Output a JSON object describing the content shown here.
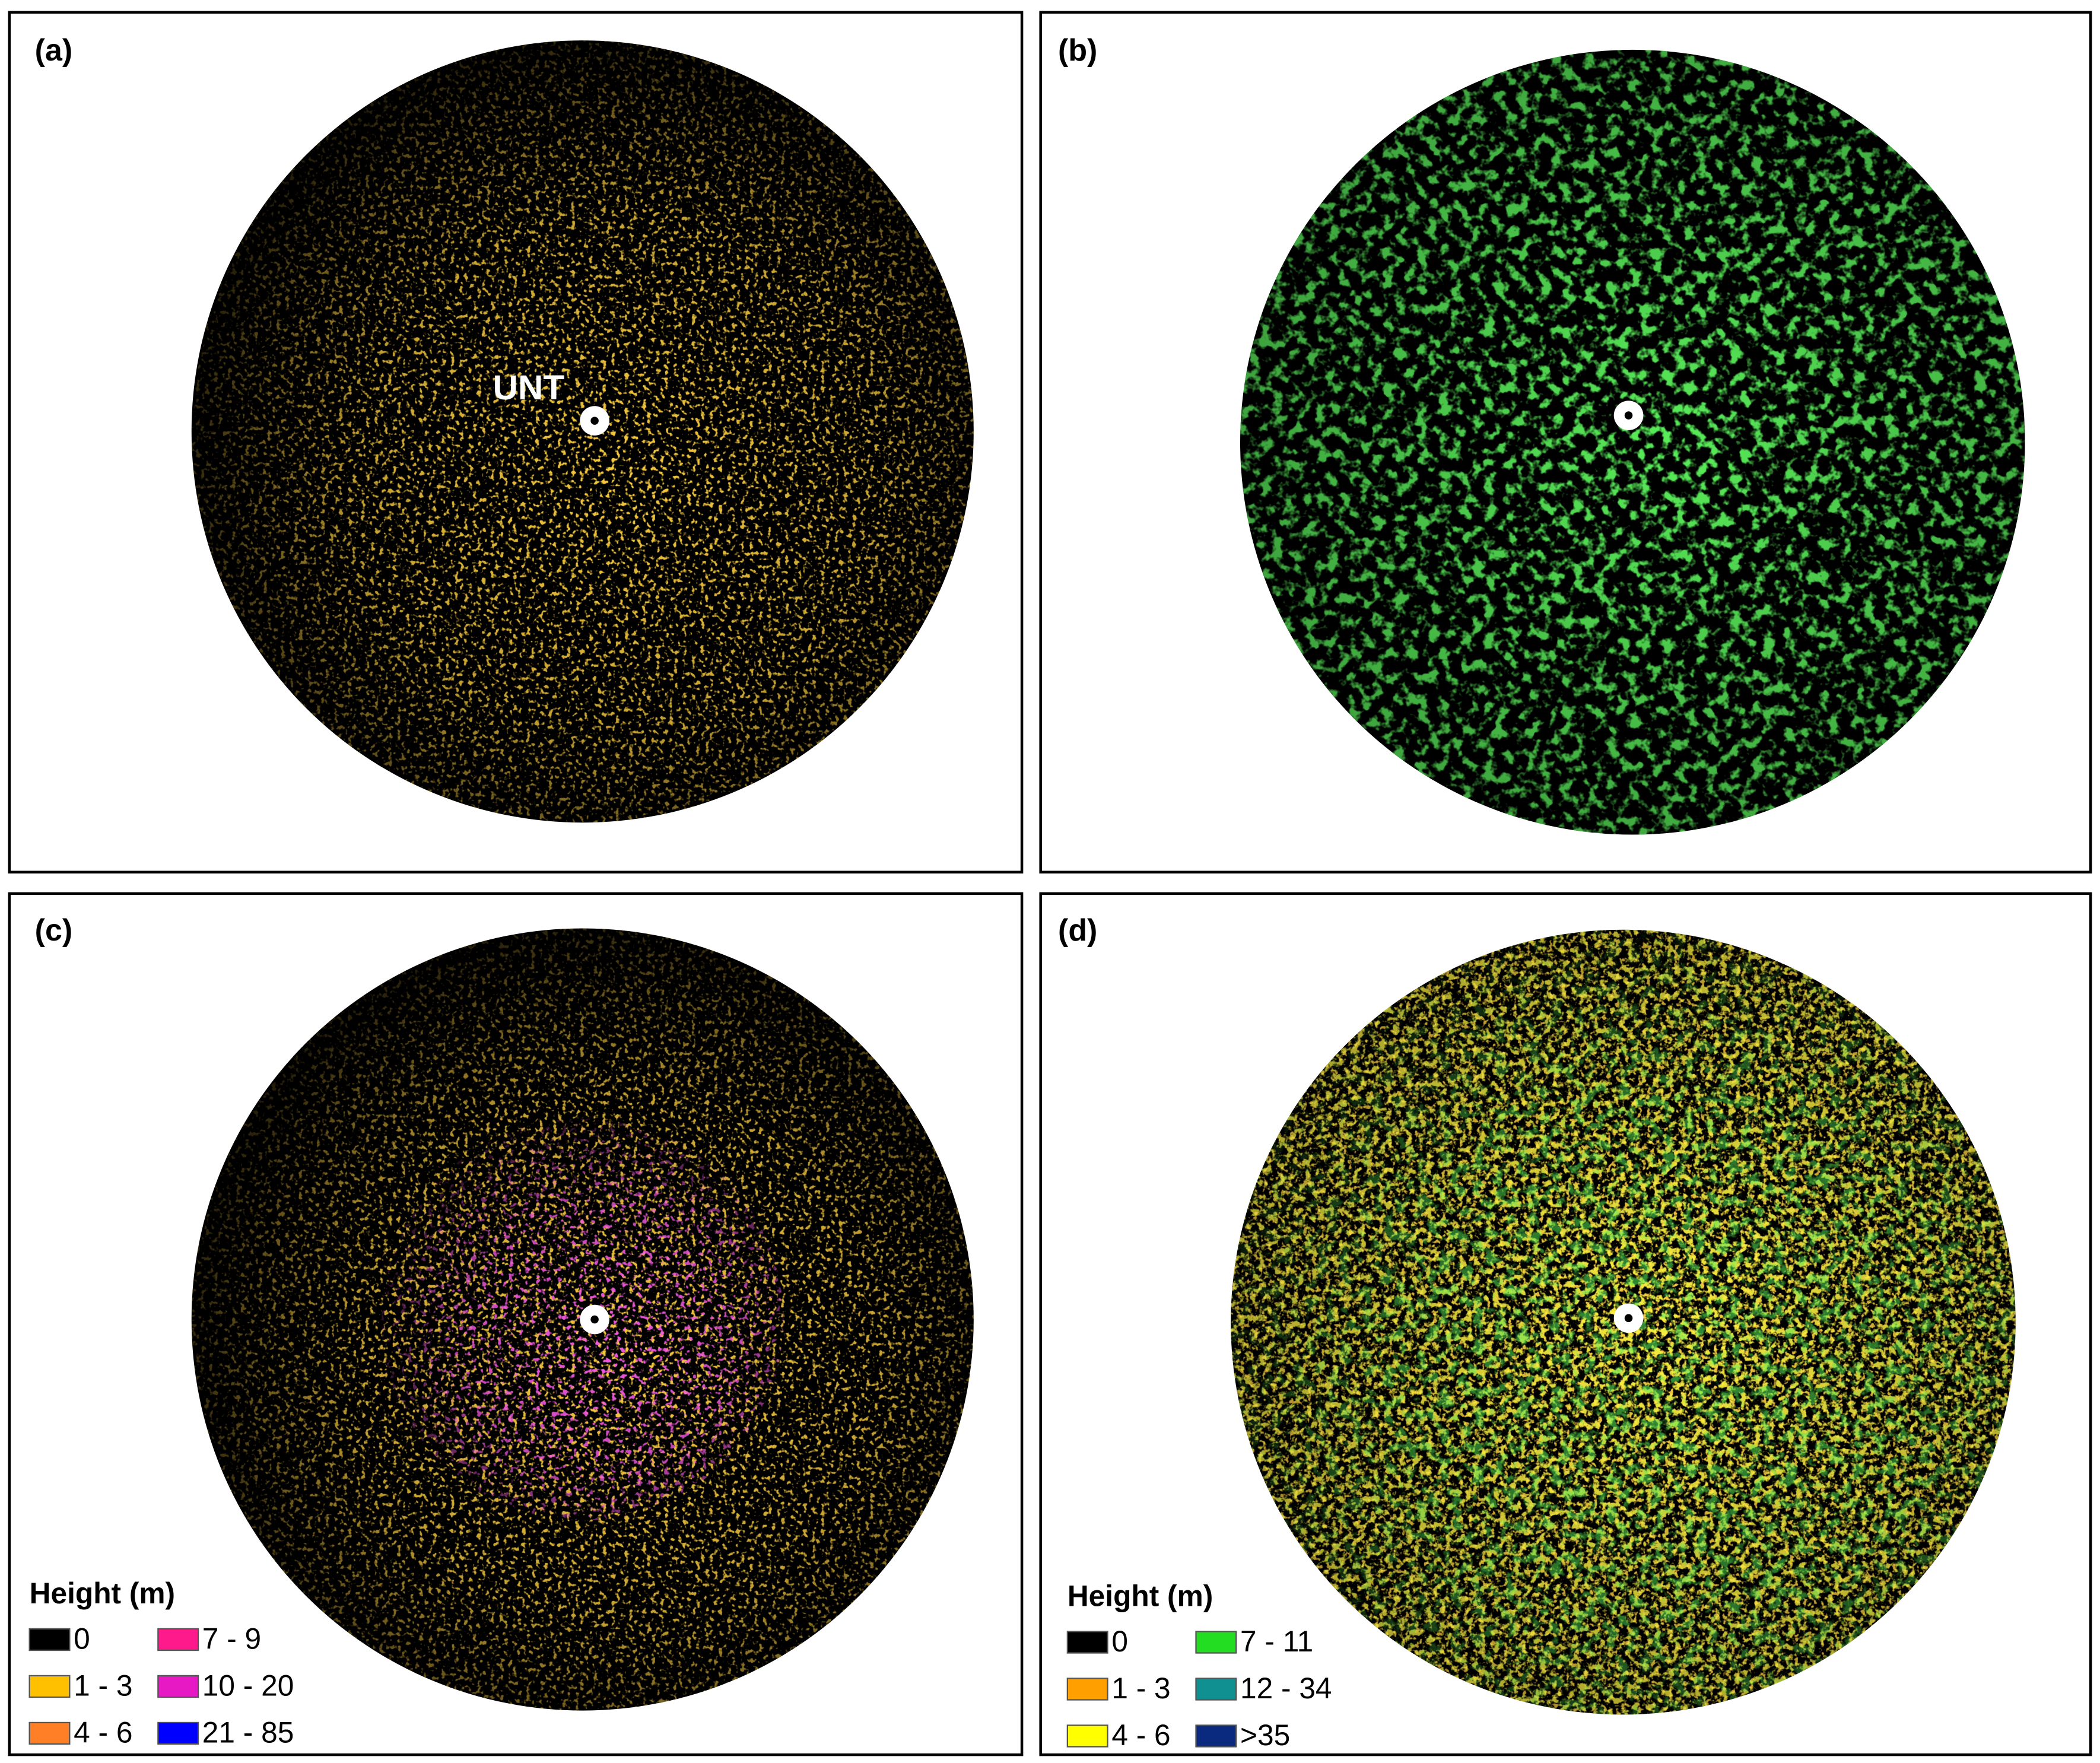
{
  "panels": [
    {
      "label": "(a)"
    },
    {
      "label": "(b)"
    },
    {
      "label": "(c)"
    },
    {
      "label": "(d)"
    }
  ],
  "annotation": "UNT",
  "legends": [
    {
      "title": "Height (m)",
      "items": [
        {
          "label": "0",
          "color": "#000000"
        },
        {
          "label": "1 - 3",
          "color": "#ffc000"
        },
        {
          "label": "4 - 6",
          "color": "#ff7f27"
        },
        {
          "label": "7 - 9",
          "color": "#ff1a8c"
        },
        {
          "label": "10 - 20",
          "color": "#e619c4"
        },
        {
          "label": "21 - 85",
          "color": "#0000ff"
        }
      ]
    },
    {
      "title": "Height (m)",
      "items": [
        {
          "label": "0",
          "color": "#000000"
        },
        {
          "label": "1 - 3",
          "color": "#ffa000"
        },
        {
          "label": "4 - 6",
          "color": "#ffff00"
        },
        {
          "label": "7 - 11",
          "color": "#22dd22"
        },
        {
          "label": "12 - 34",
          "color": "#109090"
        },
        {
          "label": ">35",
          "color": "#0a2a80"
        }
      ]
    }
  ]
}
